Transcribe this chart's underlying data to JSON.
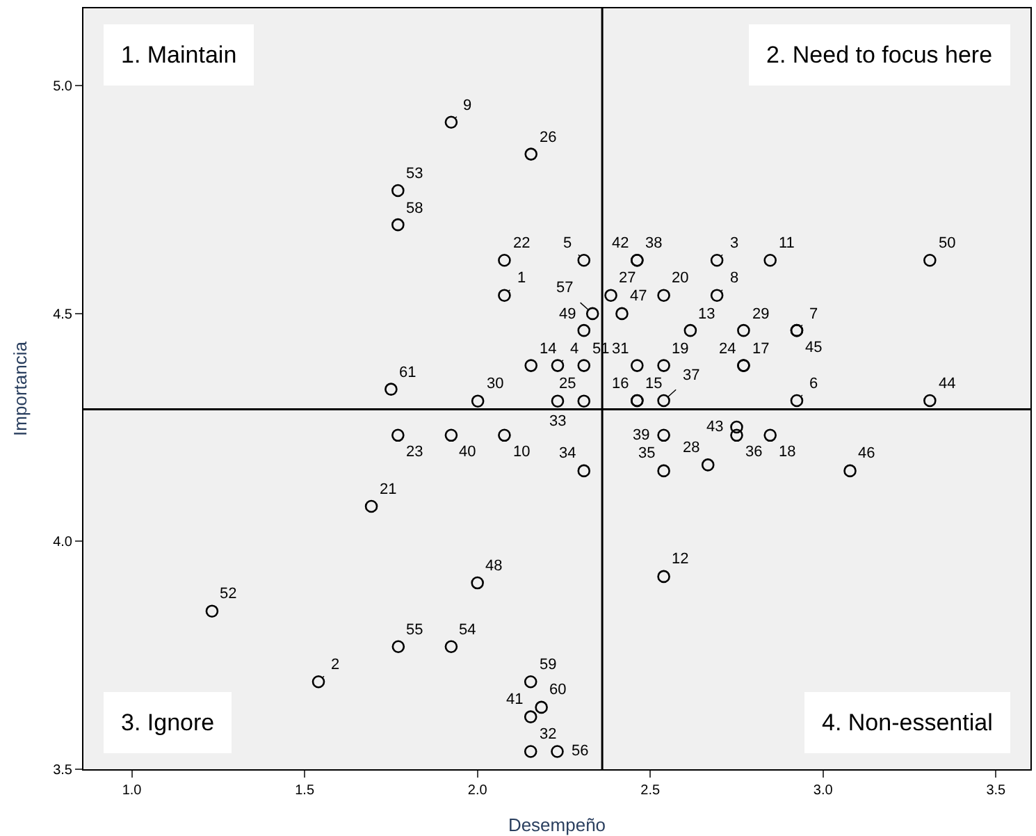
{
  "chart_data": {
    "type": "scatter",
    "xlabel": "Desempeño",
    "ylabel": "Importancia",
    "x": [
      2.078,
      1.54,
      2.693,
      2.232,
      2.308,
      2.924,
      2.924,
      2.693,
      1.924,
      2.078,
      2.847,
      2.539,
      2.616,
      2.155,
      2.462,
      2.462,
      2.77,
      2.847,
      2.539,
      2.539,
      1.693,
      2.078,
      1.77,
      2.77,
      2.308,
      2.155,
      2.386,
      2.667,
      2.77,
      2.001,
      2.462,
      2.154,
      2.232,
      2.308,
      2.539,
      2.75,
      2.539,
      2.462,
      2.539,
      1.924,
      2.154,
      2.462,
      2.75,
      3.309,
      2.924,
      3.078,
      2.418,
      2.0,
      2.308,
      3.309,
      2.308,
      1.232,
      1.77,
      1.924,
      1.771,
      2.231,
      2.333,
      1.77,
      2.154,
      2.185,
      1.75
    ],
    "series": [
      {
        "color": "#000000",
        "values": [
          4.54,
          3.692,
          4.617,
          4.386,
          4.617,
          4.309,
          4.463,
          4.54,
          4.92,
          4.233,
          4.617,
          3.923,
          4.463,
          4.386,
          4.309,
          4.309,
          4.386,
          4.233,
          4.386,
          4.54,
          4.077,
          4.617,
          4.233,
          4.386,
          4.308,
          4.85,
          4.54,
          4.168,
          4.463,
          4.308,
          4.386,
          3.539,
          4.308,
          4.155,
          4.155,
          4.233,
          4.309,
          4.617,
          4.233,
          4.233,
          3.615,
          4.617,
          4.251,
          4.309,
          4.463,
          4.155,
          4.5,
          3.909,
          4.463,
          4.617,
          4.386,
          3.847,
          4.77,
          3.769,
          3.769,
          3.539,
          4.5,
          4.695,
          3.692,
          3.636,
          4.334
        ]
      }
    ],
    "marker": "circle",
    "grid": false,
    "xlim": [
      0.86,
      3.6
    ],
    "ylim": [
      3.5,
      5.17
    ],
    "xticks": [
      {
        "value": 1,
        "label": "1.0"
      },
      1.5,
      {
        "value": 2,
        "label": "2.0"
      },
      2.5,
      {
        "value": 3,
        "label": "3.0"
      },
      3.5
    ],
    "yticks": [
      3.5,
      {
        "value": 4,
        "label": "4.0"
      },
      4.5,
      {
        "value": 5,
        "label": "5.0"
      }
    ],
    "ref_lines": [
      {
        "axis": "x",
        "value": 2.361,
        "color": "#000000"
      },
      {
        "axis": "y",
        "value": 4.29,
        "color": "#000000"
      }
    ],
    "annotations": [
      "1. Maintain",
      "2. Need to focus here",
      "3. Ignore",
      "4. Non-essential",
      {
        "text": "1",
        "x": 2.078,
        "y": 4.54
      },
      {
        "text": "2",
        "x": 1.54,
        "y": 3.692
      },
      {
        "text": "3",
        "x": 2.693,
        "y": 4.617
      },
      {
        "text": "4",
        "x": 2.232,
        "y": 4.386
      },
      {
        "text": "5",
        "x": 2.308,
        "y": 4.617
      },
      {
        "text": "6",
        "x": 2.924,
        "y": 4.309
      },
      {
        "text": "7",
        "x": 2.924,
        "y": 4.463
      },
      {
        "text": "8",
        "x": 2.693,
        "y": 4.54
      },
      {
        "text": "9",
        "x": 1.924,
        "y": 4.92
      },
      {
        "text": "10",
        "x": 2.078,
        "y": 4.233
      },
      {
        "text": "11",
        "x": 2.847,
        "y": 4.617
      },
      {
        "text": "12",
        "x": 2.539,
        "y": 3.923
      },
      {
        "text": "13",
        "x": 2.616,
        "y": 4.463
      },
      {
        "text": "14",
        "x": 2.155,
        "y": 4.386
      },
      {
        "text": "15",
        "x": 2.462,
        "y": 4.309
      },
      {
        "text": "16",
        "x": 2.462,
        "y": 4.309
      },
      {
        "text": "17",
        "x": 2.77,
        "y": 4.386
      },
      {
        "text": "18",
        "x": 2.847,
        "y": 4.233
      },
      {
        "text": "19",
        "x": 2.539,
        "y": 4.386
      },
      {
        "text": "20",
        "x": 2.539,
        "y": 4.54
      },
      {
        "text": "21",
        "x": 1.693,
        "y": 4.077
      },
      {
        "text": "22",
        "x": 2.078,
        "y": 4.617
      },
      {
        "text": "23",
        "x": 1.77,
        "y": 4.233
      },
      {
        "text": "24",
        "x": 2.77,
        "y": 4.386
      },
      {
        "text": "25",
        "x": 2.308,
        "y": 4.308
      },
      {
        "text": "26",
        "x": 2.155,
        "y": 4.85
      },
      {
        "text": "27",
        "x": 2.386,
        "y": 4.54
      },
      {
        "text": "28",
        "x": 2.667,
        "y": 4.168
      },
      {
        "text": "29",
        "x": 2.77,
        "y": 4.463
      },
      {
        "text": "30",
        "x": 2.001,
        "y": 4.308
      },
      {
        "text": "31",
        "x": 2.462,
        "y": 4.386
      },
      {
        "text": "32",
        "x": 2.154,
        "y": 3.539
      },
      {
        "text": "33",
        "x": 2.232,
        "y": 4.308
      },
      {
        "text": "34",
        "x": 2.308,
        "y": 4.155
      },
      {
        "text": "35",
        "x": 2.539,
        "y": 4.155
      },
      {
        "text": "36",
        "x": 2.75,
        "y": 4.233
      },
      {
        "text": "37",
        "x": 2.539,
        "y": 4.309
      },
      {
        "text": "38",
        "x": 2.462,
        "y": 4.617
      },
      {
        "text": "39",
        "x": 2.539,
        "y": 4.233
      },
      {
        "text": "40",
        "x": 1.924,
        "y": 4.233
      },
      {
        "text": "41",
        "x": 2.154,
        "y": 3.615
      },
      {
        "text": "42",
        "x": 2.462,
        "y": 4.617
      },
      {
        "text": "43",
        "x": 2.75,
        "y": 4.251
      },
      {
        "text": "44",
        "x": 3.309,
        "y": 4.309
      },
      {
        "text": "45",
        "x": 2.924,
        "y": 4.463
      },
      {
        "text": "46",
        "x": 3.078,
        "y": 4.155
      },
      {
        "text": "47",
        "x": 2.418,
        "y": 4.5
      },
      {
        "text": "48",
        "x": 2.0,
        "y": 3.909
      },
      {
        "text": "49",
        "x": 2.308,
        "y": 4.463
      },
      {
        "text": "50",
        "x": 3.309,
        "y": 4.617
      },
      {
        "text": "51",
        "x": 2.308,
        "y": 4.386
      },
      {
        "text": "52",
        "x": 1.232,
        "y": 3.847
      },
      {
        "text": "53",
        "x": 1.77,
        "y": 4.77
      },
      {
        "text": "54",
        "x": 1.924,
        "y": 3.769
      },
      {
        "text": "55",
        "x": 1.771,
        "y": 3.769
      },
      {
        "text": "56",
        "x": 2.231,
        "y": 3.539
      },
      {
        "text": "57",
        "x": 2.333,
        "y": 4.5
      },
      {
        "text": "58",
        "x": 1.77,
        "y": 4.695
      },
      {
        "text": "59",
        "x": 2.154,
        "y": 3.692
      },
      {
        "text": "60",
        "x": 2.185,
        "y": 3.636
      },
      {
        "text": "61",
        "x": 1.75,
        "y": 4.334
      }
    ]
  }
}
